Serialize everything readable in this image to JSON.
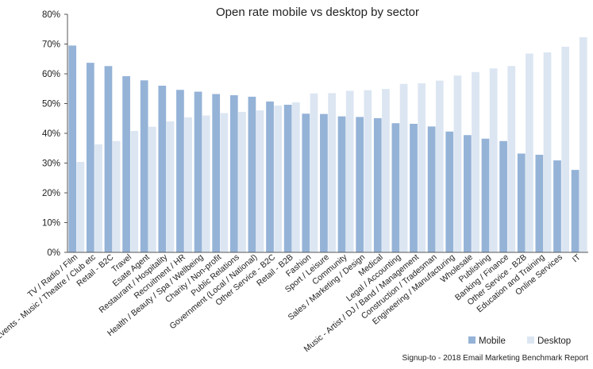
{
  "chart_data": {
    "type": "bar",
    "title": "Open rate mobile vs desktop by sector",
    "xlabel": "",
    "ylabel": "",
    "ylim": [
      0,
      80
    ],
    "y_ticks": [
      "0%",
      "10%",
      "20%",
      "30%",
      "40%",
      "50%",
      "60%",
      "70%",
      "80%"
    ],
    "y_unit": "%",
    "grid": false,
    "legend_position": "bottom-right",
    "categories": [
      "TV / Radio / Film",
      "Events - Music / Theatre / Club etc",
      "Retail - B2C",
      "Travel",
      "Esate Agent",
      "Restaurant / Hospitality",
      "Recruitment / HR",
      "Health / Beauty / Spa / Wellbeing",
      "Charity / Non-profit",
      "Public Relations",
      "Government (Local / National)",
      "Other Service - B2C",
      "Retail - B2B",
      "Fashion",
      "Sport / Leisure",
      "Community",
      "Sales / Marketing / Design",
      "Medical",
      "Legal / Accounting",
      "Music - Artist / DJ / Band / Management",
      "Construction / Tradesman",
      "Engineering / Manufacturing",
      "Wholesale",
      "Publishing",
      "Banking / Finance",
      "Other Service - B2B",
      "Education and Training",
      "Online Services",
      "IT"
    ],
    "series": [
      {
        "name": "Mobile",
        "color": "#95b3d7",
        "values": [
          69.5,
          63.7,
          62.6,
          59.2,
          57.8,
          56.0,
          54.6,
          54.0,
          53.2,
          52.8,
          52.3,
          50.7,
          49.6,
          46.6,
          46.5,
          45.7,
          45.5,
          45.1,
          43.4,
          43.2,
          42.3,
          40.6,
          39.4,
          38.2,
          37.4,
          33.2,
          32.8,
          30.9,
          27.7
        ]
      },
      {
        "name": "Desktop",
        "color": "#dce6f2",
        "values": [
          30.4,
          36.3,
          37.4,
          40.8,
          42.2,
          44.0,
          45.4,
          46.0,
          46.8,
          47.2,
          47.7,
          49.3,
          50.4,
          53.4,
          53.5,
          54.3,
          54.5,
          54.9,
          56.6,
          56.8,
          57.7,
          59.4,
          60.6,
          61.8,
          62.6,
          66.8,
          67.2,
          69.1,
          72.3
        ]
      }
    ]
  },
  "footer": {
    "source": "Signup-to - 2018 Email Marketing Benchmark Report"
  }
}
